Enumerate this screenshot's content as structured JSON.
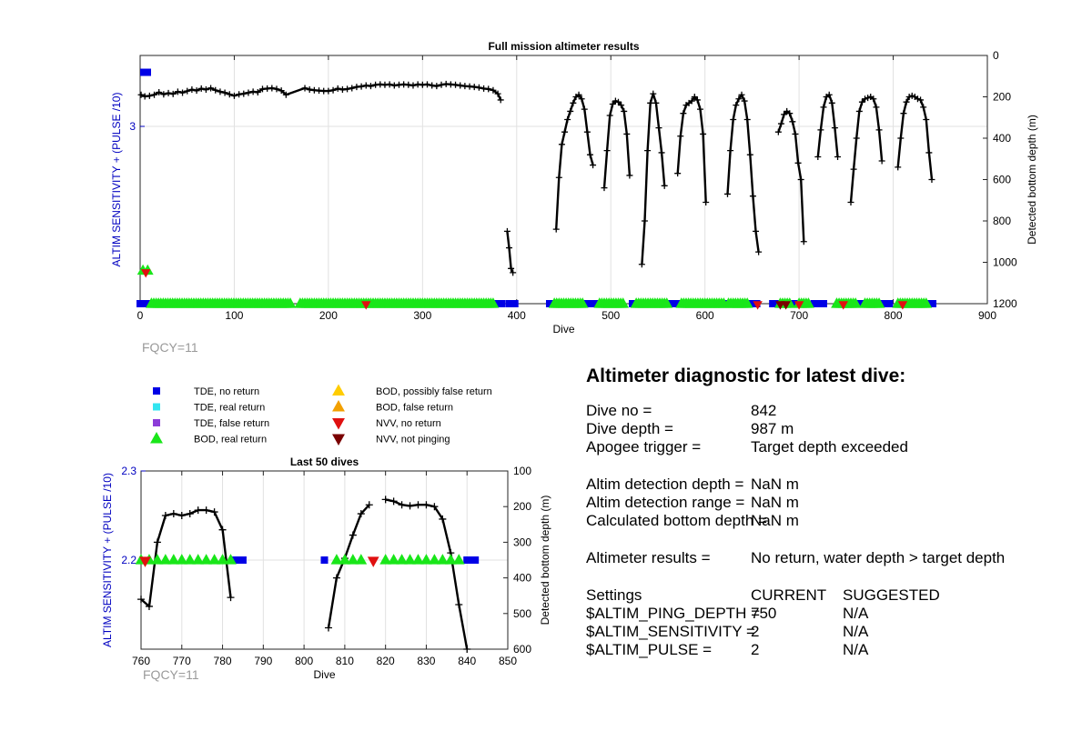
{
  "chart_data": [
    {
      "type": "scatter",
      "title": "Full mission altimeter results",
      "xlabel": "Dive",
      "ylabel_left": "ALTIM SENSITIVITY + (PULSE /10)",
      "ylabel_right": "Detected bottom depth (m)",
      "xlim": [
        0,
        900
      ],
      "xticks": [
        0,
        100,
        200,
        300,
        400,
        500,
        600,
        700,
        800,
        900
      ],
      "ylim_left": [
        2,
        3.4
      ],
      "yticks_left": [
        3
      ],
      "ylim_right": [
        1200,
        0
      ],
      "yticks_right": [
        0,
        200,
        400,
        600,
        800,
        1000,
        1200
      ],
      "grid": true,
      "annotation": "FQCY=11",
      "depth_segments": [
        [
          [
            1,
            190
          ],
          [
            5,
            198
          ],
          [
            10,
            195
          ],
          [
            15,
            190
          ],
          [
            20,
            178
          ],
          [
            25,
            188
          ],
          [
            30,
            182
          ],
          [
            35,
            186
          ],
          [
            40,
            175
          ],
          [
            45,
            180
          ],
          [
            50,
            172
          ],
          [
            55,
            165
          ],
          [
            60,
            170
          ],
          [
            65,
            160
          ],
          [
            70,
            165
          ],
          [
            75,
            158
          ],
          [
            80,
            168
          ],
          [
            85,
            175
          ],
          [
            90,
            180
          ],
          [
            95,
            188
          ],
          [
            100,
            195
          ],
          [
            105,
            188
          ],
          [
            110,
            185
          ],
          [
            115,
            180
          ],
          [
            120,
            175
          ],
          [
            125,
            178
          ],
          [
            130,
            162
          ],
          [
            135,
            160
          ],
          [
            140,
            158
          ],
          [
            145,
            162
          ],
          [
            150,
            170
          ],
          [
            155,
            190
          ],
          [
            175,
            158
          ],
          [
            180,
            165
          ],
          [
            185,
            168
          ],
          [
            190,
            170
          ],
          [
            195,
            172
          ],
          [
            200,
            172
          ],
          [
            205,
            168
          ],
          [
            210,
            160
          ],
          [
            215,
            165
          ],
          [
            220,
            162
          ],
          [
            225,
            158
          ],
          [
            230,
            152
          ],
          [
            235,
            150
          ],
          [
            240,
            145
          ],
          [
            245,
            148
          ],
          [
            250,
            142
          ],
          [
            255,
            140
          ],
          [
            260,
            142
          ],
          [
            265,
            140
          ],
          [
            270,
            145
          ],
          [
            275,
            142
          ],
          [
            280,
            140
          ],
          [
            285,
            142
          ],
          [
            290,
            145
          ],
          [
            295,
            140
          ],
          [
            300,
            142
          ],
          [
            305,
            140
          ],
          [
            310,
            145
          ],
          [
            315,
            148
          ],
          [
            320,
            142
          ],
          [
            325,
            138
          ],
          [
            330,
            140
          ],
          [
            335,
            142
          ],
          [
            340,
            145
          ],
          [
            345,
            148
          ],
          [
            350,
            150
          ],
          [
            355,
            152
          ],
          [
            360,
            155
          ],
          [
            365,
            160
          ],
          [
            370,
            162
          ],
          [
            375,
            168
          ],
          [
            380,
            185
          ],
          [
            383,
            215
          ]
        ],
        [
          [
            390,
            850
          ],
          [
            392,
            930
          ],
          [
            394,
            1030
          ],
          [
            396,
            1050
          ]
        ],
        [
          [
            442,
            840
          ],
          [
            445,
            590
          ],
          [
            448,
            430
          ],
          [
            451,
            370
          ],
          [
            454,
            310
          ],
          [
            457,
            270
          ],
          [
            460,
            230
          ],
          [
            463,
            200
          ],
          [
            466,
            190
          ],
          [
            469,
            210
          ],
          [
            472,
            260
          ],
          [
            475,
            370
          ],
          [
            478,
            480
          ],
          [
            481,
            530
          ]
        ],
        [
          [
            493,
            640
          ],
          [
            496,
            460
          ],
          [
            499,
            290
          ],
          [
            502,
            235
          ],
          [
            505,
            220
          ],
          [
            508,
            225
          ],
          [
            511,
            240
          ],
          [
            514,
            270
          ],
          [
            517,
            380
          ],
          [
            520,
            580
          ]
        ],
        [
          [
            533,
            1010
          ],
          [
            536,
            800
          ],
          [
            539,
            460
          ],
          [
            542,
            230
          ],
          [
            545,
            185
          ],
          [
            548,
            230
          ],
          [
            551,
            350
          ],
          [
            554,
            470
          ],
          [
            557,
            630
          ]
        ],
        [
          [
            571,
            570
          ],
          [
            574,
            390
          ],
          [
            577,
            280
          ],
          [
            580,
            240
          ],
          [
            583,
            230
          ],
          [
            586,
            220
          ],
          [
            589,
            200
          ],
          [
            592,
            215
          ],
          [
            595,
            260
          ],
          [
            598,
            380
          ],
          [
            601,
            710
          ]
        ],
        [
          [
            624,
            670
          ],
          [
            627,
            460
          ],
          [
            630,
            310
          ],
          [
            633,
            240
          ],
          [
            636,
            210
          ],
          [
            639,
            190
          ],
          [
            642,
            220
          ],
          [
            645,
            310
          ],
          [
            648,
            480
          ],
          [
            651,
            680
          ],
          [
            654,
            850
          ],
          [
            657,
            950
          ]
        ],
        [
          [
            678,
            370
          ],
          [
            681,
            330
          ],
          [
            684,
            285
          ],
          [
            687,
            270
          ],
          [
            690,
            280
          ],
          [
            693,
            320
          ],
          [
            696,
            380
          ],
          [
            699,
            520
          ],
          [
            702,
            600
          ],
          [
            705,
            900
          ]
        ],
        [
          [
            720,
            490
          ],
          [
            723,
            360
          ],
          [
            726,
            250
          ],
          [
            729,
            200
          ],
          [
            732,
            190
          ],
          [
            735,
            230
          ],
          [
            738,
            350
          ],
          [
            741,
            490
          ]
        ],
        [
          [
            755,
            710
          ],
          [
            758,
            550
          ],
          [
            761,
            400
          ],
          [
            764,
            270
          ],
          [
            767,
            225
          ],
          [
            770,
            210
          ],
          [
            773,
            205
          ],
          [
            776,
            200
          ],
          [
            779,
            210
          ],
          [
            782,
            250
          ],
          [
            785,
            360
          ],
          [
            788,
            510
          ]
        ],
        [
          [
            805,
            540
          ],
          [
            808,
            400
          ],
          [
            811,
            280
          ],
          [
            814,
            225
          ],
          [
            817,
            200
          ],
          [
            820,
            195
          ],
          [
            823,
            200
          ],
          [
            826,
            210
          ],
          [
            829,
            215
          ],
          [
            832,
            250
          ],
          [
            835,
            310
          ],
          [
            838,
            470
          ],
          [
            841,
            600
          ]
        ]
      ],
      "tde_no_return_ranges": [
        [
          0,
          10
        ],
        [
          376,
          385
        ],
        [
          392,
          398
        ],
        [
          435,
          447
        ],
        [
          460,
          472
        ],
        [
          478,
          490
        ],
        [
          498,
          508
        ],
        [
          523,
          534
        ],
        [
          545,
          555
        ],
        [
          563,
          572
        ],
        [
          588,
          596
        ],
        [
          618,
          628
        ],
        [
          643,
          655
        ],
        [
          672,
          682
        ],
        [
          693,
          703
        ],
        [
          716,
          726
        ],
        [
          745,
          752
        ],
        [
          765,
          775
        ],
        [
          786,
          796
        ],
        [
          832,
          843
        ]
      ],
      "tde_no_return_single": [
        [
          0,
          3.305
        ]
      ],
      "bod_real_return_ranges": [
        [
          12,
          160
        ],
        [
          170,
          375
        ],
        [
          440,
          470
        ],
        [
          488,
          515
        ],
        [
          527,
          560
        ],
        [
          575,
          620
        ],
        [
          625,
          645
        ],
        [
          680,
          690
        ],
        [
          700,
          710
        ],
        [
          740,
          760
        ],
        [
          770,
          785
        ],
        [
          805,
          835
        ]
      ],
      "bod_real_return_single": [
        [
          3,
          2.187
        ],
        [
          8,
          2.187
        ]
      ],
      "nvv_no_return_single": [
        [
          6,
          2.18
        ],
        [
          240,
          2.0
        ],
        [
          656,
          2.0
        ],
        [
          700,
          2.0
        ],
        [
          747,
          2.0
        ],
        [
          810,
          2.0
        ]
      ],
      "nvv_not_pinging_single": [
        [
          680,
          2.0
        ],
        [
          686,
          2.0
        ]
      ]
    },
    {
      "type": "scatter",
      "title": "Last 50 dives",
      "xlabel": "Dive",
      "ylabel_left": "ALTIM SENSITIVITY + (PULSE /10)",
      "ylabel_right": "Detected bottom depth (m)",
      "xlim": [
        760,
        850
      ],
      "xticks": [
        760,
        770,
        780,
        790,
        800,
        810,
        820,
        830,
        840,
        850
      ],
      "ylim_left": [
        2.1,
        2.3
      ],
      "yticks_left": [
        2.2,
        2.3
      ],
      "ylim_right": [
        600,
        100
      ],
      "yticks_right": [
        100,
        200,
        300,
        400,
        500,
        600
      ],
      "grid": true,
      "annotation": "FQCY=11",
      "depth_segments": [
        [
          [
            760,
            460
          ],
          [
            762,
            480
          ],
          [
            764,
            300
          ],
          [
            766,
            225
          ],
          [
            768,
            220
          ],
          [
            770,
            225
          ],
          [
            772,
            220
          ],
          [
            774,
            210
          ],
          [
            776,
            210
          ],
          [
            778,
            215
          ],
          [
            780,
            265
          ],
          [
            782,
            455
          ]
        ],
        [
          [
            806,
            540
          ],
          [
            808,
            400
          ],
          [
            810,
            345
          ],
          [
            812,
            280
          ],
          [
            814,
            220
          ],
          [
            816,
            195
          ]
        ],
        [
          [
            820,
            180
          ],
          [
            822,
            185
          ],
          [
            824,
            195
          ],
          [
            826,
            198
          ],
          [
            828,
            195
          ],
          [
            830,
            195
          ],
          [
            832,
            200
          ],
          [
            834,
            235
          ],
          [
            836,
            330
          ],
          [
            838,
            475
          ],
          [
            840,
            600
          ]
        ]
      ],
      "tde_no_return": [
        783,
        784,
        785,
        805,
        840,
        841,
        842
      ],
      "bod_real_return": [
        760,
        762,
        764,
        766,
        768,
        770,
        772,
        774,
        776,
        778,
        780,
        782,
        808,
        810,
        812,
        814,
        820,
        822,
        824,
        826,
        828,
        830,
        832,
        834,
        836,
        838
      ],
      "nvv_no_return": [
        761,
        817
      ]
    }
  ],
  "legend": [
    {
      "label": "TDE, no return",
      "color": "#0000e6",
      "marker": "square"
    },
    {
      "label": "TDE, real return",
      "color": "#33e5f0",
      "marker": "square"
    },
    {
      "label": "TDE, false return",
      "color": "#8c3cd8",
      "marker": "square"
    },
    {
      "label": "BOD, real return",
      "color": "#19e619",
      "marker": "triangle-up"
    },
    {
      "label": "BOD, possibly false return",
      "color": "#ffcc00",
      "marker": "triangle-up"
    },
    {
      "label": "BOD, false return",
      "color": "#f2a000",
      "marker": "triangle-up"
    },
    {
      "label": "NVV, no return",
      "color": "#e01010",
      "marker": "triangle-down"
    },
    {
      "label": "NVV, not pinging",
      "color": "#7a0000",
      "marker": "triangle-down"
    }
  ],
  "diagnostic": {
    "title": "Altimeter diagnostic for latest dive:",
    "rows1": [
      {
        "key": "Dive no =",
        "value": "842"
      },
      {
        "key": "Dive depth =",
        "value": "987 m"
      },
      {
        "key": "Apogee trigger =",
        "value": "Target depth exceeded"
      }
    ],
    "rows2": [
      {
        "key": "Altim detection depth =",
        "value": "NaN m"
      },
      {
        "key": "Altim detection range =",
        "value": "NaN m"
      },
      {
        "key": "Calculated bottom depth =",
        "value": "NaN m"
      }
    ],
    "results": {
      "key": "Altimeter results =",
      "value": "No return, water depth > target depth"
    },
    "settings_header": {
      "key": "Settings",
      "current": "CURRENT",
      "suggested": "SUGGESTED"
    },
    "settings": [
      {
        "key": "$ALTIM_PING_DEPTH =",
        "current": "750",
        "suggested": "N/A"
      },
      {
        "key": "$ALTIM_SENSITIVITY =",
        "current": "2",
        "suggested": "N/A"
      },
      {
        "key": "$ALTIM_PULSE =",
        "current": "2",
        "suggested": "N/A"
      }
    ]
  }
}
